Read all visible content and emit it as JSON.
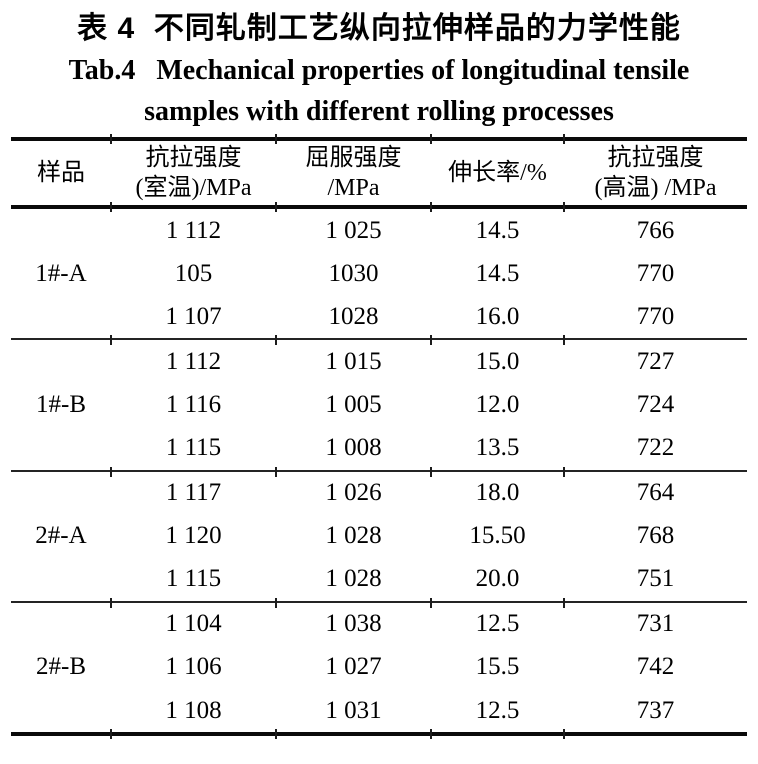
{
  "title": {
    "zh": "表 4  不同轧制工艺纵向拉伸样品的力学性能",
    "en_line1": "Tab.4   Mechanical properties of longitudinal tensile",
    "en_line2": "samples with different rolling processes"
  },
  "table": {
    "headers": [
      {
        "line1": "样品",
        "line2": ""
      },
      {
        "line1": "抗拉强度",
        "line2": "(室温)/MPa"
      },
      {
        "line1": "屈服强度",
        "line2": "/MPa"
      },
      {
        "line1": "伸长率/%",
        "line2": ""
      },
      {
        "line1": "抗拉强度",
        "line2": "(高温) /MPa"
      }
    ],
    "groups": [
      {
        "sample": "1#-A",
        "rows": [
          [
            "1 112",
            "1 025",
            "14.5",
            "766"
          ],
          [
            "105",
            "1030",
            "14.5",
            "770"
          ],
          [
            "1 107",
            "1028",
            "16.0",
            "770"
          ]
        ]
      },
      {
        "sample": "1#-B",
        "rows": [
          [
            "1 112",
            "1 015",
            "15.0",
            "727"
          ],
          [
            "1 116",
            "1 005",
            "12.0",
            "724"
          ],
          [
            "1 115",
            "1 008",
            "13.5",
            "722"
          ]
        ]
      },
      {
        "sample": "2#-A",
        "rows": [
          [
            "1 117",
            "1 026",
            "18.0",
            "764"
          ],
          [
            "1 120",
            "1 028",
            "15.50",
            "768"
          ],
          [
            "1 115",
            "1 028",
            "20.0",
            "751"
          ]
        ]
      },
      {
        "sample": "2#-B",
        "rows": [
          [
            "1 104",
            "1 038",
            "12.5",
            "731"
          ],
          [
            "1 106",
            "1 027",
            "15.5",
            "742"
          ],
          [
            "1 108",
            "1 031",
            "12.5",
            "737"
          ]
        ]
      }
    ],
    "colors": {
      "text": "#000000",
      "rule": "#0a0a0a",
      "background": "#ffffff"
    }
  }
}
